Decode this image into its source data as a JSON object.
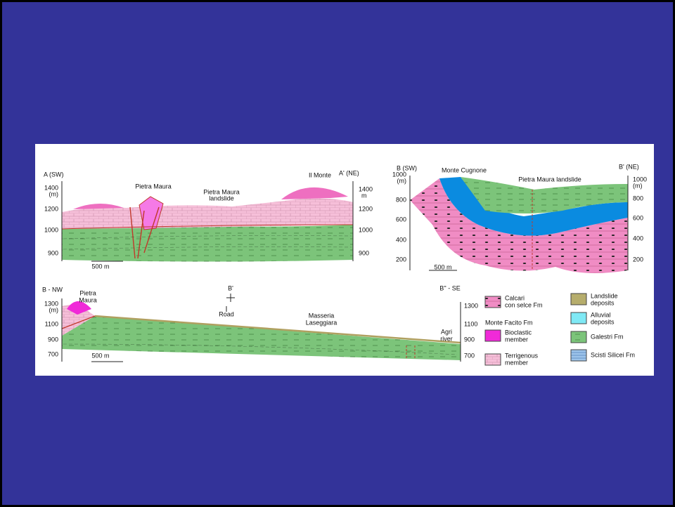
{
  "panels": [
    {
      "left_label": "A (SW)",
      "right_label": "A' (NE)",
      "left_unit": "(m)",
      "right_unit": "m",
      "left_ticks": [
        "1400",
        "1200",
        "1000",
        "900"
      ],
      "right_ticks": [
        "1400",
        "1200",
        "1000",
        "900"
      ],
      "scale_bar": "500 m",
      "labels": [
        "Pietra Maura",
        "Pietra Maura",
        "landslide",
        "Il Monte"
      ]
    },
    {
      "left_label": "B (SW)",
      "right_label": "B' (NE)",
      "left_unit": "(m)",
      "right_unit": "(m)",
      "left_ticks": [
        "1000",
        "800",
        "600",
        "400",
        "200"
      ],
      "right_ticks": [
        "1000",
        "800",
        "600",
        "400",
        "200"
      ],
      "scale_bar": "500 m",
      "labels": [
        "Monte Cugnone",
        "Pietra Maura landslide"
      ]
    },
    {
      "left_label": "B - NW",
      "right_label": "B'' - SE",
      "left_unit": "(m)",
      "left_ticks": [
        "1300",
        "1100",
        "900",
        "700"
      ],
      "right_ticks": [
        "1300",
        "1100",
        "900",
        "700"
      ],
      "scale_bar": "500 m",
      "labels": [
        "Pietra",
        "Maura",
        "B'",
        "Road",
        "Masseria",
        "Laseggiara",
        "Agri",
        "river"
      ]
    }
  ],
  "legend": {
    "heading": "Monte Facito Fm",
    "items": [
      [
        "Calcari",
        "con selce Fm"
      ],
      [
        "Bioclastic",
        "member"
      ],
      [
        "Terrigenous",
        "member"
      ],
      [
        "Landslide",
        "deposits"
      ],
      [
        "Alluvial",
        "deposits"
      ],
      [
        "Galestri Fm"
      ],
      [
        "Scisti Silicei Fm"
      ]
    ]
  }
}
